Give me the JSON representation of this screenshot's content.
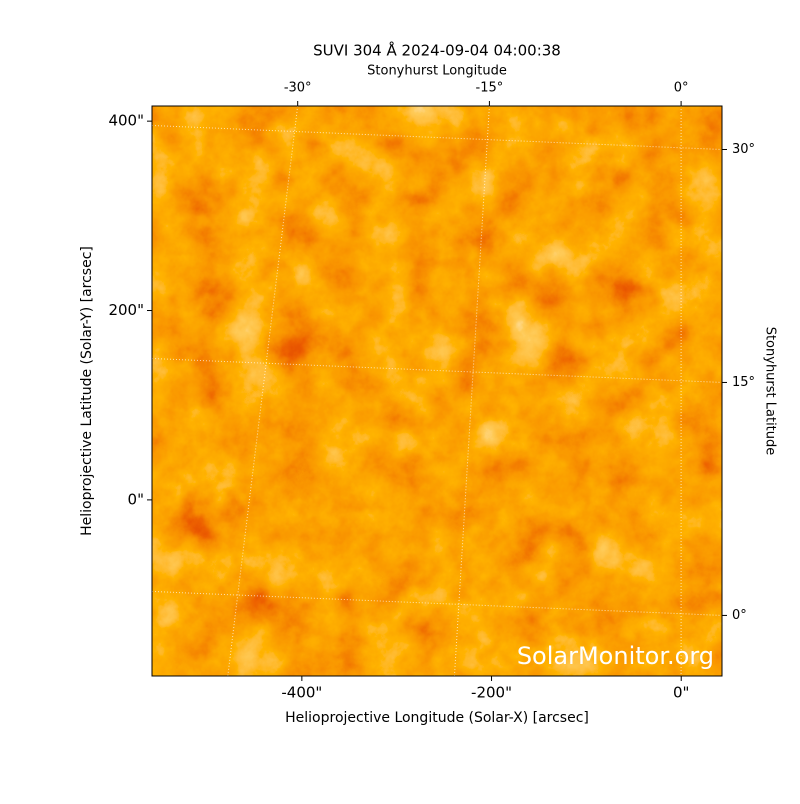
{
  "chart_data": {
    "type": "image",
    "title": "SUVI 304 Å 2024-09-04 04:00:38",
    "xlabel": "Helioprojective Longitude (Solar-X) [arcsec]",
    "ylabel": "Helioprojective Latitude (Solar-Y) [arcsec]",
    "x2label": "Stonyhurst Longitude",
    "y2label": "Stonyhurst Latitude",
    "watermark": "SolarMonitor.org",
    "xlim": [
      -558,
      43
    ],
    "ylim": [
      -186,
      416
    ],
    "xticks": [
      {
        "value": -400,
        "label": "-400\""
      },
      {
        "value": -200,
        "label": "-200\""
      },
      {
        "value": 0,
        "label": "0\""
      }
    ],
    "yticks": [
      {
        "value": 0,
        "label": "0\""
      },
      {
        "value": 200,
        "label": "200\""
      },
      {
        "value": 400,
        "label": "400\""
      }
    ],
    "x2lim": [
      -41.4,
      3.2
    ],
    "x2ticks": [
      {
        "value": -30,
        "label": "-30°"
      },
      {
        "value": -15,
        "label": "-15°"
      },
      {
        "value": 0,
        "label": "0°"
      }
    ],
    "y2lim": [
      -3.9,
      32.8
    ],
    "y2ticks": [
      {
        "value": 0,
        "label": "0°"
      },
      {
        "value": 15,
        "label": "15°"
      },
      {
        "value": 30,
        "label": "30°"
      }
    ],
    "grid": true
  }
}
